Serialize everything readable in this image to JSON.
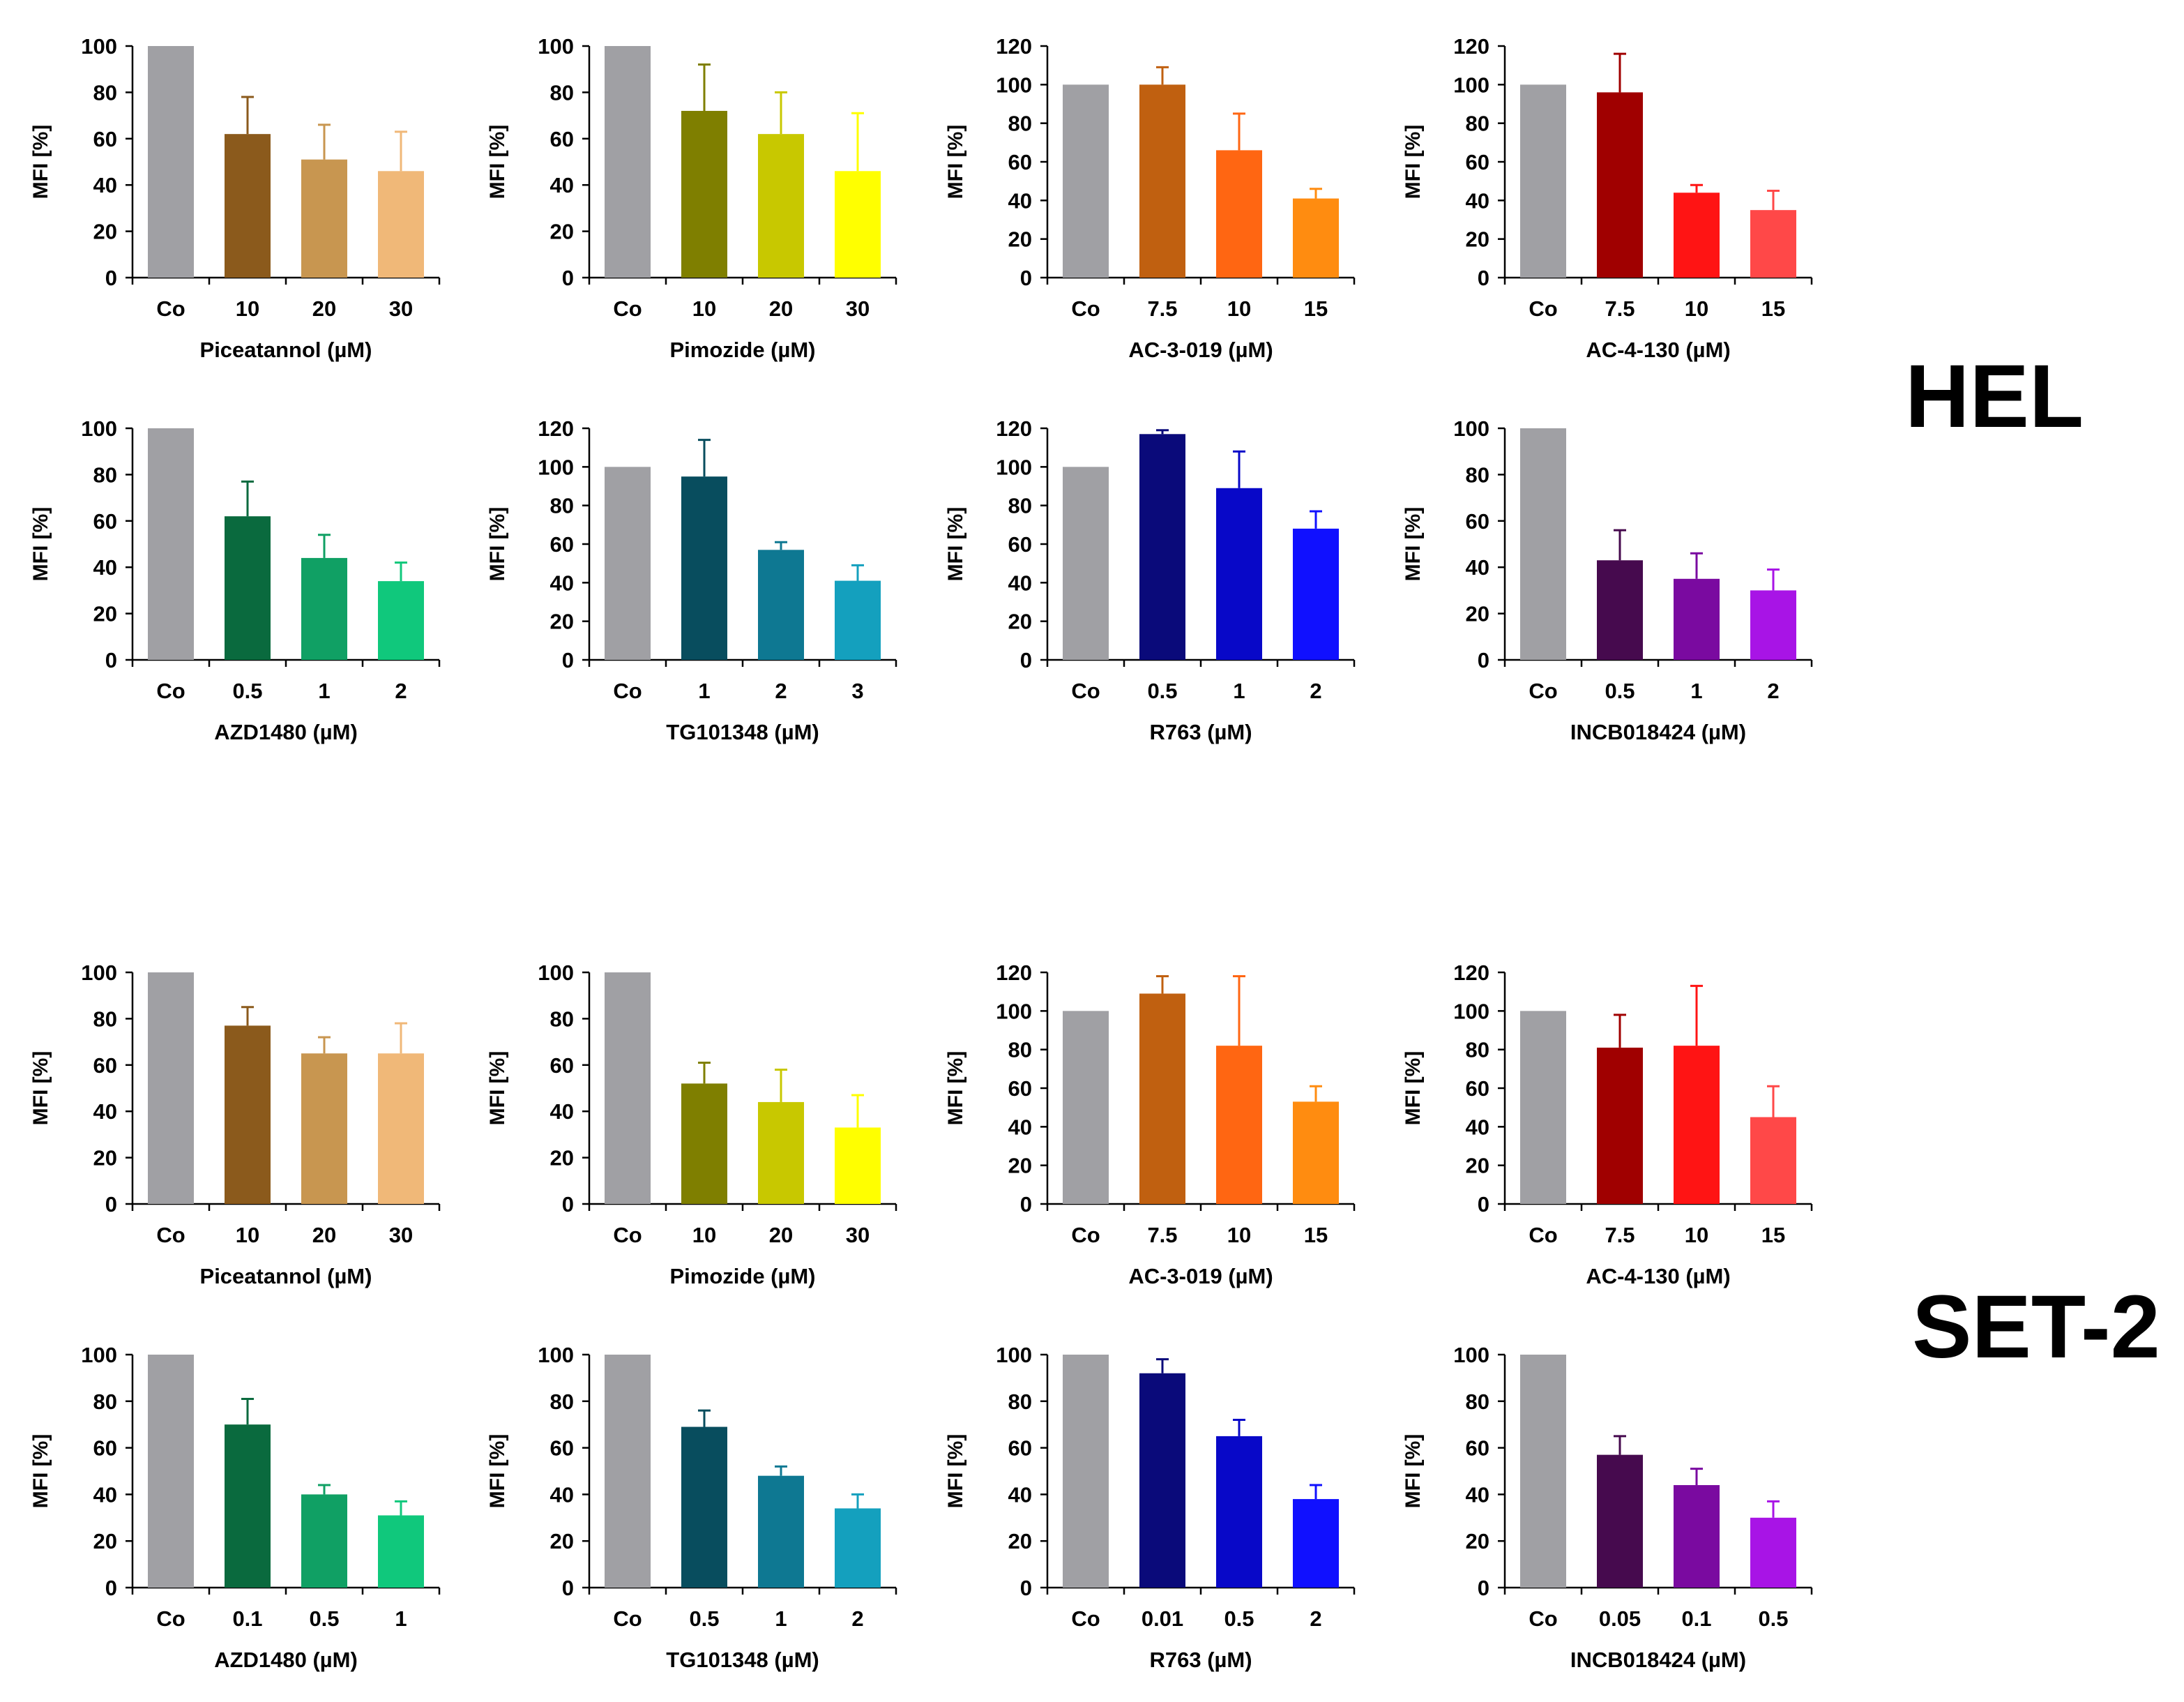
{
  "cell_lines": [
    "HEL",
    "SET-2"
  ],
  "chart_data": [
    {
      "type": "bar",
      "panel": "HEL",
      "title": "",
      "xlabel": "Piceatannol (µM)",
      "ylabel": "MFI [%]",
      "ylim": [
        0,
        100
      ],
      "yticks": [
        0,
        20,
        40,
        60,
        80,
        100
      ],
      "categories": [
        "Co",
        "10",
        "20",
        "30"
      ],
      "values": [
        100,
        62,
        51,
        46
      ],
      "errors": [
        0,
        16,
        15,
        17
      ],
      "colors": [
        "#a0a0a4",
        "#8b5a1c",
        "#c89650",
        "#f0b878"
      ]
    },
    {
      "type": "bar",
      "panel": "HEL",
      "title": "",
      "xlabel": "Pimozide (µM)",
      "ylabel": "MFI [%]",
      "ylim": [
        0,
        100
      ],
      "yticks": [
        0,
        20,
        40,
        60,
        80,
        100
      ],
      "categories": [
        "Co",
        "10",
        "20",
        "30"
      ],
      "values": [
        100,
        72,
        62,
        46
      ],
      "errors": [
        0,
        20,
        18,
        25
      ],
      "colors": [
        "#a0a0a4",
        "#7f7f00",
        "#c8c800",
        "#ffff00"
      ]
    },
    {
      "type": "bar",
      "panel": "HEL",
      "title": "",
      "xlabel": "AC-3-019 (µM)",
      "ylabel": "MFI [%]",
      "ylim": [
        0,
        120
      ],
      "yticks": [
        0,
        20,
        40,
        60,
        80,
        100,
        120
      ],
      "categories": [
        "Co",
        "7.5",
        "10",
        "15"
      ],
      "values": [
        100,
        100,
        66,
        41
      ],
      "errors": [
        0,
        9,
        19,
        5
      ],
      "colors": [
        "#a0a0a4",
        "#c06010",
        "#ff6612",
        "#ff8c10"
      ]
    },
    {
      "type": "bar",
      "panel": "HEL",
      "title": "",
      "xlabel": "AC-4-130 (µM)",
      "ylabel": "MFI [%]",
      "ylim": [
        0,
        120
      ],
      "yticks": [
        0,
        20,
        40,
        60,
        80,
        100,
        120
      ],
      "categories": [
        "Co",
        "7.5",
        "10",
        "15"
      ],
      "values": [
        100,
        96,
        44,
        35
      ],
      "errors": [
        0,
        20,
        4,
        10
      ],
      "colors": [
        "#a0a0a4",
        "#a00000",
        "#ff1414",
        "#ff4848"
      ]
    },
    {
      "type": "bar",
      "panel": "HEL",
      "title": "",
      "xlabel": "AZD1480 (µM)",
      "ylabel": "MFI [%]",
      "ylim": [
        0,
        100
      ],
      "yticks": [
        0,
        20,
        40,
        60,
        80,
        100
      ],
      "categories": [
        "Co",
        "0.5",
        "1",
        "2"
      ],
      "values": [
        100,
        62,
        44,
        34
      ],
      "errors": [
        0,
        15,
        10,
        8
      ],
      "colors": [
        "#a0a0a4",
        "#0a6a3e",
        "#10a064",
        "#10c87c"
      ]
    },
    {
      "type": "bar",
      "panel": "HEL",
      "title": "",
      "xlabel": "TG101348 (µM)",
      "ylabel": "MFI [%]",
      "ylim": [
        0,
        120
      ],
      "yticks": [
        0,
        20,
        40,
        60,
        80,
        100,
        120
      ],
      "categories": [
        "Co",
        "1",
        "2",
        "3"
      ],
      "values": [
        100,
        95,
        57,
        41
      ],
      "errors": [
        0,
        19,
        4,
        8
      ],
      "colors": [
        "#a0a0a4",
        "#084d5e",
        "#0e7892",
        "#14a0be"
      ]
    },
    {
      "type": "bar",
      "panel": "HEL",
      "title": "",
      "xlabel": "R763 (µM)",
      "ylabel": "MFI [%]",
      "ylim": [
        0,
        120
      ],
      "yticks": [
        0,
        20,
        40,
        60,
        80,
        100,
        120
      ],
      "categories": [
        "Co",
        "0.5",
        "1",
        "2"
      ],
      "values": [
        100,
        117,
        89,
        68
      ],
      "errors": [
        0,
        2,
        19,
        9
      ],
      "colors": [
        "#a0a0a4",
        "#0a0a7a",
        "#0808c8",
        "#1010ff"
      ]
    },
    {
      "type": "bar",
      "panel": "HEL",
      "title": "",
      "xlabel": "INCB018424 (µM)",
      "ylabel": "MFI [%]",
      "ylim": [
        0,
        100
      ],
      "yticks": [
        0,
        20,
        40,
        60,
        80,
        100
      ],
      "categories": [
        "Co",
        "0.5",
        "1",
        "2"
      ],
      "values": [
        100,
        43,
        35,
        30
      ],
      "errors": [
        0,
        13,
        11,
        9
      ],
      "colors": [
        "#a0a0a4",
        "#460a4e",
        "#7a0aa0",
        "#a814e6"
      ]
    },
    {
      "type": "bar",
      "panel": "SET-2",
      "title": "",
      "xlabel": "Piceatannol (µM)",
      "ylabel": "MFI [%]",
      "ylim": [
        0,
        100
      ],
      "yticks": [
        0,
        20,
        40,
        60,
        80,
        100
      ],
      "categories": [
        "Co",
        "10",
        "20",
        "30"
      ],
      "values": [
        100,
        77,
        65,
        65
      ],
      "errors": [
        0,
        8,
        7,
        13
      ],
      "colors": [
        "#a0a0a4",
        "#8b5a1c",
        "#c89650",
        "#f0b878"
      ]
    },
    {
      "type": "bar",
      "panel": "SET-2",
      "title": "",
      "xlabel": "Pimozide (µM)",
      "ylabel": "MFI [%]",
      "ylim": [
        0,
        100
      ],
      "yticks": [
        0,
        20,
        40,
        60,
        80,
        100
      ],
      "categories": [
        "Co",
        "10",
        "20",
        "30"
      ],
      "values": [
        100,
        52,
        44,
        33
      ],
      "errors": [
        0,
        9,
        14,
        14
      ],
      "colors": [
        "#a0a0a4",
        "#7f7f00",
        "#c8c800",
        "#ffff00"
      ]
    },
    {
      "type": "bar",
      "panel": "SET-2",
      "title": "",
      "xlabel": "AC-3-019 (µM)",
      "ylabel": "MFI [%]",
      "ylim": [
        0,
        120
      ],
      "yticks": [
        0,
        20,
        40,
        60,
        80,
        100,
        120
      ],
      "categories": [
        "Co",
        "7.5",
        "10",
        "15"
      ],
      "values": [
        100,
        109,
        82,
        53
      ],
      "errors": [
        0,
        9,
        36,
        8
      ],
      "colors": [
        "#a0a0a4",
        "#c06010",
        "#ff6612",
        "#ff8c10"
      ]
    },
    {
      "type": "bar",
      "panel": "SET-2",
      "title": "",
      "xlabel": "AC-4-130 (µM)",
      "ylabel": "MFI [%]",
      "ylim": [
        0,
        120
      ],
      "yticks": [
        0,
        20,
        40,
        60,
        80,
        100,
        120
      ],
      "categories": [
        "Co",
        "7.5",
        "10",
        "15"
      ],
      "values": [
        100,
        81,
        82,
        45
      ],
      "errors": [
        0,
        17,
        31,
        16
      ],
      "colors": [
        "#a0a0a4",
        "#a00000",
        "#ff1414",
        "#ff4848"
      ]
    },
    {
      "type": "bar",
      "panel": "SET-2",
      "title": "",
      "xlabel": "AZD1480 (µM)",
      "ylabel": "MFI [%]",
      "ylim": [
        0,
        100
      ],
      "yticks": [
        0,
        20,
        40,
        60,
        80,
        100
      ],
      "categories": [
        "Co",
        "0.1",
        "0.5",
        "1"
      ],
      "values": [
        100,
        70,
        40,
        31
      ],
      "errors": [
        0,
        11,
        4,
        6
      ],
      "colors": [
        "#a0a0a4",
        "#0a6a3e",
        "#10a064",
        "#10c87c"
      ]
    },
    {
      "type": "bar",
      "panel": "SET-2",
      "title": "",
      "xlabel": "TG101348 (µM)",
      "ylabel": "MFI [%]",
      "ylim": [
        0,
        100
      ],
      "yticks": [
        0,
        20,
        40,
        60,
        80,
        100
      ],
      "categories": [
        "Co",
        "0.5",
        "1",
        "2"
      ],
      "values": [
        100,
        69,
        48,
        34
      ],
      "errors": [
        0,
        7,
        4,
        6
      ],
      "colors": [
        "#a0a0a4",
        "#084d5e",
        "#0e7892",
        "#14a0be"
      ]
    },
    {
      "type": "bar",
      "panel": "SET-2",
      "title": "",
      "xlabel": "R763 (µM)",
      "ylabel": "MFI [%]",
      "ylim": [
        0,
        100
      ],
      "yticks": [
        0,
        20,
        40,
        60,
        80,
        100
      ],
      "categories": [
        "Co",
        "0.01",
        "0.5",
        "2"
      ],
      "values": [
        100,
        92,
        65,
        38
      ],
      "errors": [
        0,
        6,
        7,
        6
      ],
      "colors": [
        "#a0a0a4",
        "#0a0a7a",
        "#0808c8",
        "#1010ff"
      ]
    },
    {
      "type": "bar",
      "panel": "SET-2",
      "title": "",
      "xlabel": "INCB018424 (µM)",
      "ylabel": "MFI [%]",
      "ylim": [
        0,
        100
      ],
      "yticks": [
        0,
        20,
        40,
        60,
        80,
        100
      ],
      "categories": [
        "Co",
        "0.05",
        "0.1",
        "0.5"
      ],
      "values": [
        100,
        57,
        44,
        30
      ],
      "errors": [
        0,
        8,
        7,
        7
      ],
      "colors": [
        "#a0a0a4",
        "#460a4e",
        "#7a0aa0",
        "#a814e6"
      ]
    }
  ]
}
